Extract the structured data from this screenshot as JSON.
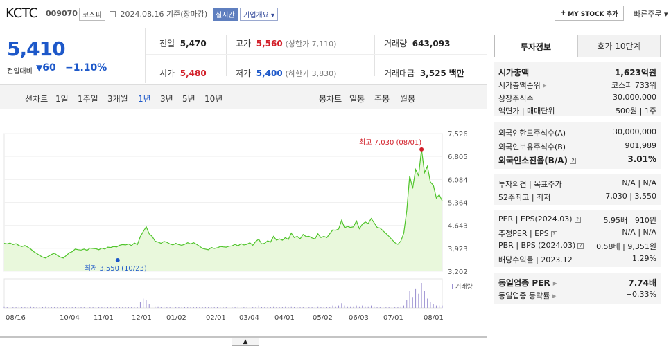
{
  "header": {
    "name": "KCTC",
    "code": "009070",
    "market": "코스피",
    "date": "2024.08.16",
    "date_suffix": "기준(장마감)",
    "live_badge": "실시간",
    "corp_info": "기업개요",
    "my_stock": "MY STOCK 추가",
    "quick_order": "빠른주문"
  },
  "price": {
    "current": "5,410",
    "change_label": "전일대비",
    "change": "60",
    "change_pct": "−1.10%",
    "prev_label": "전일",
    "prev": "5,470",
    "high_label": "고가",
    "high": "5,560",
    "upper_limit": "(상한가 7,110)",
    "volume_label": "거래량",
    "volume": "643,093",
    "open_label": "시가",
    "open": "5,480",
    "low_label": "저가",
    "low": "5,400",
    "lower_limit": "(하한가 3,830)",
    "amount_label": "거래대금",
    "amount": "3,525",
    "amount_unit": "백만"
  },
  "periods": {
    "line_label": "선차트",
    "line": [
      "1일",
      "1주일",
      "3개월",
      "1년",
      "3년",
      "5년",
      "10년"
    ],
    "active": "1년",
    "candle_label": "봉차트",
    "candle": [
      "일봉",
      "주봉",
      "월봉"
    ]
  },
  "chart_data": {
    "type": "area",
    "y_ticks": [
      "7,526",
      "6,805",
      "6,084",
      "5,364",
      "4,643",
      "3,923",
      "3,202"
    ],
    "ylim": [
      3202,
      7526
    ],
    "x_ticks": [
      "08/16",
      "10/04",
      "11/01",
      "12/01",
      "01/02",
      "02/01",
      "03/04",
      "04/01",
      "05/02",
      "06/03",
      "07/01",
      "08/01"
    ],
    "values": [
      4080,
      4060,
      4090,
      4040,
      4070,
      4010,
      3980,
      4010,
      3960,
      3900,
      3820,
      3760,
      3700,
      3650,
      3620,
      3680,
      3730,
      3770,
      3700,
      3650,
      3620,
      3700,
      3780,
      3820,
      3900,
      3880,
      3870,
      3900,
      3860,
      3930,
      3920,
      3910,
      3880,
      3930,
      3900,
      3960,
      3950,
      3980,
      3970,
      4020,
      4040,
      4030,
      4060,
      4010,
      4090,
      4040,
      4290,
      4450,
      4600,
      4380,
      4300,
      4150,
      4120,
      4080,
      4140,
      4110,
      4060,
      4030,
      4080,
      4040,
      4020,
      4050,
      4100,
      4060,
      4100,
      4050,
      3990,
      3920,
      3900,
      3880,
      3950,
      3920,
      3940,
      3980,
      3970,
      3960,
      3990,
      4000,
      4050,
      4000,
      4070,
      4030,
      4050,
      4100,
      4020,
      4140,
      4210,
      4060,
      4080,
      4160,
      4120,
      4300,
      4180,
      4220,
      4180,
      4260,
      4200,
      4400,
      4260,
      4300,
      4220,
      4360,
      4290,
      4300,
      4250,
      4220,
      4380,
      4260,
      4300,
      4260,
      4380,
      4500,
      4490,
      4530,
      4800,
      4570,
      4610,
      4580,
      4600,
      4780,
      4540,
      4680,
      4750,
      4700,
      4860,
      4720,
      4580,
      4560,
      4470,
      4390,
      4300,
      4200,
      4100,
      4050,
      4150,
      4400,
      5100,
      6200,
      5800,
      6400,
      6200,
      7030,
      6300,
      6500,
      6000,
      5900,
      5500,
      5600,
      5410
    ],
    "high_label": "최고  7,030 (08/01)",
    "high_value": 7030,
    "high_index": 141,
    "low_label": "최저  3,550 (10/23)",
    "low_value": 3550,
    "low_index": 14,
    "volume_label": "거래량",
    "volumes": [
      2,
      1,
      2,
      1,
      1,
      2,
      1,
      1,
      1,
      2,
      1,
      1,
      1,
      1,
      2,
      1,
      1,
      1,
      1,
      1,
      1,
      1,
      1,
      1,
      1,
      1,
      1,
      1,
      1,
      1,
      1,
      1,
      1,
      1,
      1,
      1,
      1,
      1,
      1,
      1,
      1,
      1,
      1,
      1,
      1,
      1,
      8,
      12,
      10,
      5,
      3,
      2,
      2,
      1,
      2,
      1,
      1,
      1,
      1,
      1,
      1,
      1,
      1,
      1,
      1,
      1,
      1,
      1,
      1,
      1,
      1,
      1,
      1,
      1,
      1,
      1,
      1,
      1,
      1,
      2,
      1,
      1,
      1,
      1,
      1,
      1,
      3,
      1,
      1,
      1,
      1,
      2,
      1,
      1,
      1,
      2,
      1,
      2,
      1,
      1,
      1,
      1,
      1,
      1,
      1,
      1,
      2,
      1,
      1,
      1,
      1,
      3,
      2,
      3,
      6,
      3,
      2,
      2,
      2,
      3,
      2,
      3,
      2,
      2,
      3,
      2,
      1,
      1,
      1,
      1,
      1,
      1,
      1,
      1,
      2,
      3,
      10,
      22,
      14,
      25,
      18,
      32,
      22,
      12,
      8,
      5,
      3,
      3,
      3
    ]
  },
  "invest": {
    "tab1": "투자정보",
    "tab2": "호가 10단계",
    "s1": [
      {
        "k": "시가총액",
        "v": "1,623억원",
        "b": true
      },
      {
        "k": "시가총액순위",
        "v": "코스피 733위"
      },
      {
        "k": "상장주식수",
        "v": "30,000,000"
      },
      {
        "k": "액면가 | 매매단위",
        "v": "500원 | 1주"
      }
    ],
    "s2": [
      {
        "k": "외국인한도주식수(A)",
        "v": "30,000,000"
      },
      {
        "k": "외국인보유주식수(B)",
        "v": "901,989"
      },
      {
        "k": "외국인소진율(B/A)",
        "v": "3.01%",
        "b": true
      }
    ],
    "s3": [
      {
        "k": "투자의견 | 목표주가",
        "v": "N/A | N/A"
      },
      {
        "k": "52주최고 | 최저",
        "v": "7,030 | 3,550"
      }
    ],
    "s4": [
      {
        "k": "PER | EPS(2024.03)",
        "v": "5.95배 | 910원"
      },
      {
        "k": "추정PER | EPS",
        "v": "N/A | N/A"
      },
      {
        "k": "PBR | BPS (2024.03)",
        "v": "0.58배 | 9,351원"
      },
      {
        "k": "배당수익률 | 2023.12",
        "v": "1.29%"
      }
    ],
    "s5": [
      {
        "k": "동일업종 PER",
        "v": "7.74배",
        "b": true
      },
      {
        "k": "동일업종 등락률",
        "v": "+0.33%",
        "red": true
      }
    ]
  },
  "colors": {
    "up": "#d2202a",
    "down": "#1d58c9",
    "line": "#4fc42a",
    "fill": "#e9f8dc"
  }
}
